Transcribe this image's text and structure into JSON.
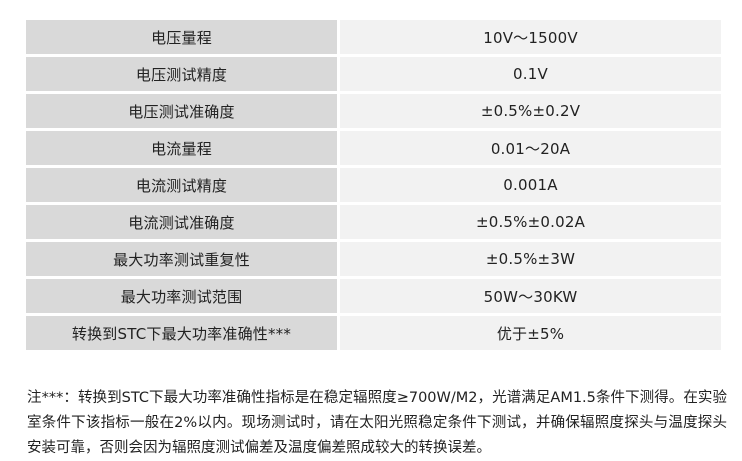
{
  "spec_table": {
    "rows": [
      {
        "label": "电压量程",
        "value": "10V～1500V"
      },
      {
        "label": "电压测试精度",
        "value": "0.1V"
      },
      {
        "label": "电压测试准确度",
        "value": "±0.5%±0.2V"
      },
      {
        "label": "电流量程",
        "value": "0.01～20A"
      },
      {
        "label": "电流测试精度",
        "value": "0.001A"
      },
      {
        "label": "电流测试准确度",
        "value": "±0.5%±0.02A"
      },
      {
        "label": "最大功率测试重复性",
        "value": "±0.5%±3W"
      },
      {
        "label": "最大功率测试范围",
        "value": "50W～30KW"
      },
      {
        "label": "转换到STC下最大功率准确性***",
        "value": "优于±5%"
      }
    ]
  },
  "footnote": {
    "text": "注***：转换到STC下最大功率准确性指标是在稳定辐照度≥700W/M2，光谱满足AM1.5条件下测得。在实验室条件下该指标一般在2%以内。现场测试时，请在太阳光照稳定条件下测试，并确保辐照度探头与温度探头安装可靠，否则会因为辐照度测试偏差及温度偏差照成较大的转换误差。"
  },
  "colors": {
    "label_bg": "#d9d9d9",
    "value_bg": "#f2f2f2",
    "text": "#222222"
  }
}
